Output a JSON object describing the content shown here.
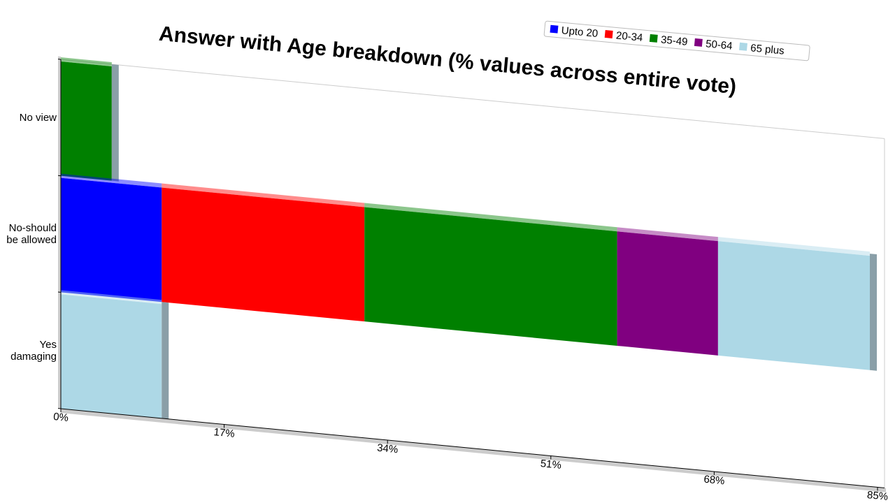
{
  "chart_data": {
    "type": "stacked-bar-horizontal",
    "title": "Answer with Age breakdown (% values across entire vote)",
    "categories": [
      "No view",
      "No-should be allowed",
      "Yes damaging"
    ],
    "series": [
      {
        "name": "Upto 20",
        "color": "#0000ff",
        "values": [
          null,
          10.5,
          null
        ]
      },
      {
        "name": "20-34",
        "color": "#ff0000",
        "values": [
          null,
          21.1,
          null
        ]
      },
      {
        "name": "35-49",
        "color": "#008000",
        "values": [
          5.3,
          26.3,
          null
        ]
      },
      {
        "name": "50-64",
        "color": "#800080",
        "values": [
          null,
          10.5,
          null
        ]
      },
      {
        "name": "65 plus",
        "color": "#add8e6",
        "values": [
          null,
          15.8,
          10.5
        ]
      }
    ],
    "xlim": [
      0,
      85
    ],
    "xticks": [
      {
        "value": 0,
        "label": "0%"
      },
      {
        "value": 17,
        "label": "17%"
      },
      {
        "value": 34,
        "label": "34%"
      },
      {
        "value": 51,
        "label": "51%"
      },
      {
        "value": 68,
        "label": "68%"
      },
      {
        "value": 85,
        "label": "85%"
      }
    ],
    "legend": "top-right"
  }
}
